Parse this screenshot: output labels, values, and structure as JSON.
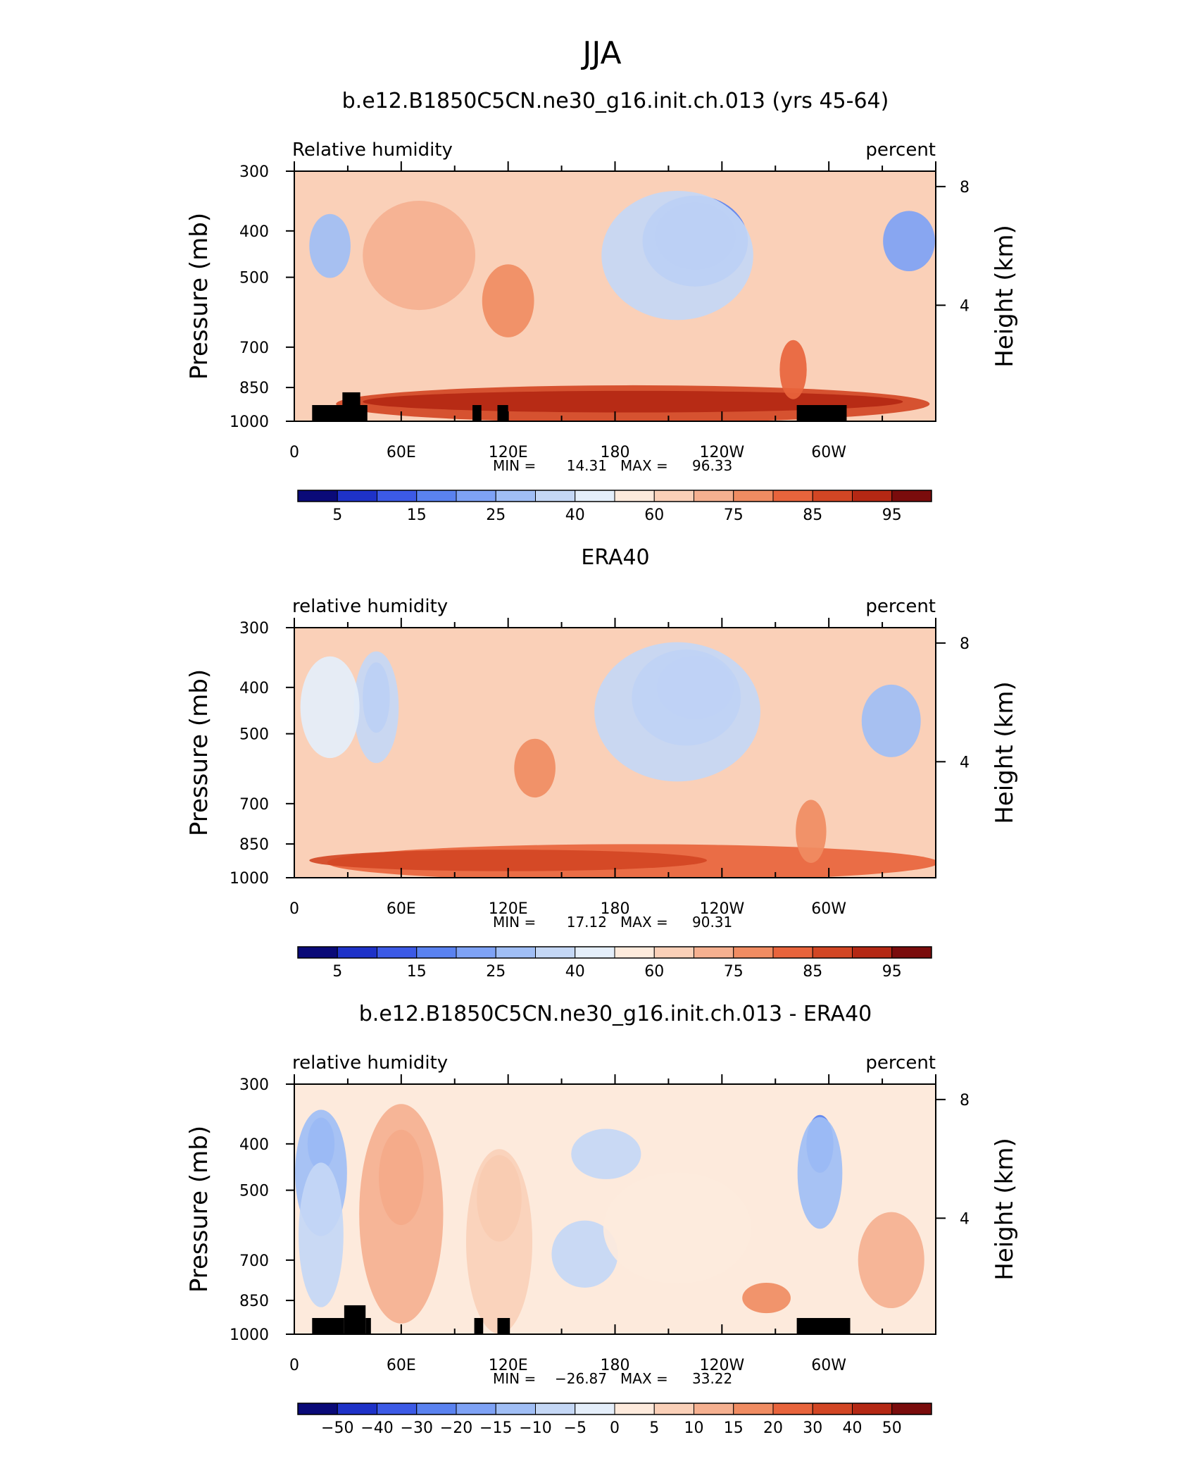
{
  "figure": {
    "main_title": "JJA"
  },
  "chart_data": [
    {
      "type": "heatmap",
      "title": "b.e12.B1850C5CN.ne30_g16.init.ch.013 (yrs 45-64)",
      "left_label": "Relative humidity",
      "right_label": "percent",
      "ylabel": "Pressure (mb)",
      "ylabel_right": "Height (km)",
      "x_ticks": [
        "0",
        "60E",
        "120E",
        "180",
        "120W",
        "60W"
      ],
      "x_tick_lon": [
        0,
        60,
        120,
        180,
        240,
        300
      ],
      "y_ticks": [
        300,
        400,
        500,
        700,
        850,
        1000
      ],
      "y_ticks_right": [
        8,
        4
      ],
      "xlim": [
        0,
        360
      ],
      "ylim": [
        1000,
        300
      ],
      "y_scale": "log",
      "min_label": "MIN =",
      "min_value": "14.31",
      "max_label": "MAX =",
      "max_value": "96.33",
      "colorbar_labels": [
        "5",
        "15",
        "25",
        "40",
        "60",
        "75",
        "85",
        "95"
      ],
      "colorbar_levels": [
        5,
        10,
        15,
        20,
        25,
        30,
        40,
        50,
        60,
        70,
        75,
        80,
        85,
        90,
        95
      ],
      "colormap": [
        "#0a0a78",
        "#1e32c8",
        "#3c5ae6",
        "#5a82f0",
        "#7ea2f5",
        "#a0bef5",
        "#c4d7f5",
        "#e4eefa",
        "#fdeadc",
        "#fad0b8",
        "#f5b090",
        "#f08c62",
        "#e8643c",
        "#d24624",
        "#b42814",
        "#7a0c0c"
      ],
      "orography": [
        {
          "lon_start": 10,
          "lon_end": 34,
          "top_p": 925
        },
        {
          "lon_start": 27,
          "lon_end": 37,
          "top_p": 870
        },
        {
          "lon_start": 34,
          "lon_end": 41,
          "top_p": 925
        },
        {
          "lon_start": 100,
          "lon_end": 105,
          "top_p": 925
        },
        {
          "lon_start": 114,
          "lon_end": 120,
          "top_p": 925
        },
        {
          "lon_start": 282,
          "lon_end": 310,
          "top_p": 925
        }
      ],
      "blobs": [
        {
          "lon": 225,
          "p": 410,
          "dlon": 42,
          "dp": 120,
          "level": 1
        },
        {
          "lon": 225,
          "p": 420,
          "dlon": 56,
          "dp": 170,
          "level": 3
        },
        {
          "lon": 215,
          "p": 450,
          "dlon": 82,
          "dp": 260,
          "level": 6
        },
        {
          "lon": 20,
          "p": 430,
          "dlon": 20,
          "dp": 120,
          "level": 5
        },
        {
          "lon": 345,
          "p": 420,
          "dlon": 26,
          "dp": 110,
          "level": 4
        },
        {
          "lon": 120,
          "p": 560,
          "dlon": 26,
          "dp": 180,
          "level": 11
        },
        {
          "lon": 70,
          "p": 450,
          "dlon": 60,
          "dp": 220,
          "level": 10
        },
        {
          "lon": 190,
          "p": 920,
          "dlon": 330,
          "dp": 140,
          "level": 13
        },
        {
          "lon": 190,
          "p": 910,
          "dlon": 300,
          "dp": 70,
          "level": 14
        },
        {
          "lon": 280,
          "p": 780,
          "dlon": 12,
          "dp": 200,
          "level": 12
        }
      ]
    },
    {
      "type": "heatmap",
      "title": "ERA40",
      "left_label": "relative humidity",
      "right_label": "percent",
      "ylabel": "Pressure (mb)",
      "ylabel_right": "Height (km)",
      "x_ticks": [
        "0",
        "60E",
        "120E",
        "180",
        "120W",
        "60W"
      ],
      "x_tick_lon": [
        0,
        60,
        120,
        180,
        240,
        300
      ],
      "y_ticks": [
        300,
        400,
        500,
        700,
        850,
        1000
      ],
      "y_ticks_right": [
        8,
        4
      ],
      "xlim": [
        0,
        360
      ],
      "ylim": [
        1000,
        300
      ],
      "y_scale": "log",
      "min_label": "MIN =",
      "min_value": "17.12",
      "max_label": "MAX =",
      "max_value": "90.31",
      "colorbar_labels": [
        "5",
        "15",
        "25",
        "40",
        "60",
        "75",
        "85",
        "95"
      ],
      "colorbar_levels": [
        5,
        10,
        15,
        20,
        25,
        30,
        40,
        50,
        60,
        70,
        75,
        80,
        85,
        90,
        95
      ],
      "colormap": [
        "#0a0a78",
        "#1e32c8",
        "#3c5ae6",
        "#5a82f0",
        "#7ea2f5",
        "#a0bef5",
        "#c4d7f5",
        "#e4eefa",
        "#fdeadc",
        "#fad0b8",
        "#f5b090",
        "#f08c62",
        "#e8643c",
        "#d24624",
        "#b42814",
        "#7a0c0c"
      ],
      "orography": [],
      "blobs": [
        {
          "lon": 225,
          "p": 400,
          "dlon": 40,
          "dp": 110,
          "level": 2
        },
        {
          "lon": 220,
          "p": 420,
          "dlon": 58,
          "dp": 180,
          "level": 4
        },
        {
          "lon": 215,
          "p": 450,
          "dlon": 90,
          "dp": 280,
          "level": 6
        },
        {
          "lon": 46,
          "p": 420,
          "dlon": 12,
          "dp": 130,
          "level": 3
        },
        {
          "lon": 46,
          "p": 440,
          "dlon": 22,
          "dp": 220,
          "level": 6
        },
        {
          "lon": 335,
          "p": 470,
          "dlon": 30,
          "dp": 150,
          "level": 5
        },
        {
          "lon": 20,
          "p": 440,
          "dlon": 30,
          "dp": 200,
          "level": 7
        },
        {
          "lon": 135,
          "p": 590,
          "dlon": 20,
          "dp": 150,
          "level": 11
        },
        {
          "lon": 190,
          "p": 930,
          "dlon": 340,
          "dp": 140,
          "level": 12
        },
        {
          "lon": 120,
          "p": 920,
          "dlon": 220,
          "dp": 70,
          "level": 13
        },
        {
          "lon": 290,
          "p": 800,
          "dlon": 14,
          "dp": 220,
          "level": 11
        }
      ]
    },
    {
      "type": "heatmap",
      "title": "b.e12.B1850C5CN.ne30_g16.init.ch.013 - ERA40",
      "left_label": "relative humidity",
      "right_label": "percent",
      "ylabel": "Pressure (mb)",
      "ylabel_right": "Height (km)",
      "x_ticks": [
        "0",
        "60E",
        "120E",
        "180",
        "120W",
        "60W"
      ],
      "x_tick_lon": [
        0,
        60,
        120,
        180,
        240,
        300
      ],
      "y_ticks": [
        300,
        400,
        500,
        700,
        850,
        1000
      ],
      "y_ticks_right": [
        8,
        4
      ],
      "xlim": [
        0,
        360
      ],
      "ylim": [
        1000,
        300
      ],
      "y_scale": "log",
      "min_label": "MIN =",
      "min_value": "−26.87",
      "max_label": "MAX =",
      "max_value": "33.22",
      "colorbar_labels": [
        "−50",
        "−40",
        "−30",
        "−20",
        "−15",
        "−10",
        "−5",
        "0",
        "5",
        "10",
        "15",
        "20",
        "30",
        "40",
        "50"
      ],
      "colorbar_levels": [
        -50,
        -40,
        -30,
        -20,
        -15,
        -10,
        -5,
        0,
        5,
        10,
        15,
        20,
        30,
        40,
        50
      ],
      "colormap": [
        "#0a0a78",
        "#1e32c8",
        "#3c5ae6",
        "#5a82f0",
        "#7ea2f5",
        "#a0bef5",
        "#c4d7f5",
        "#e4eefa",
        "#fdeadc",
        "#fad0b8",
        "#f5b090",
        "#f08c62",
        "#e8643c",
        "#d24624",
        "#b42814",
        "#7a0c0c"
      ],
      "orography": [
        {
          "lon_start": 10,
          "lon_end": 28,
          "top_p": 925
        },
        {
          "lon_start": 28,
          "lon_end": 40,
          "top_p": 870
        },
        {
          "lon_start": 40,
          "lon_end": 43,
          "top_p": 925
        },
        {
          "lon_start": 101,
          "lon_end": 106,
          "top_p": 925
        },
        {
          "lon_start": 114,
          "lon_end": 121,
          "top_p": 925
        },
        {
          "lon_start": 282,
          "lon_end": 312,
          "top_p": 925
        }
      ],
      "blobs": [
        {
          "lon": 15,
          "p": 400,
          "dlon": 12,
          "dp": 90,
          "level": 3
        },
        {
          "lon": 15,
          "p": 460,
          "dlon": 26,
          "dp": 260,
          "level": 5
        },
        {
          "lon": 15,
          "p": 620,
          "dlon": 22,
          "dp": 400,
          "level": 6
        },
        {
          "lon": 295,
          "p": 400,
          "dlon": 12,
          "dp": 100,
          "level": 3
        },
        {
          "lon": 295,
          "p": 460,
          "dlon": 22,
          "dp": 230,
          "level": 5
        },
        {
          "lon": 163,
          "p": 680,
          "dlon": 34,
          "dp": 200,
          "level": 6
        },
        {
          "lon": 175,
          "p": 420,
          "dlon": 36,
          "dp": 90,
          "level": 6
        },
        {
          "lon": 60,
          "p": 470,
          "dlon": 22,
          "dp": 200,
          "level": 12
        },
        {
          "lon": 60,
          "p": 560,
          "dlon": 44,
          "dp": 560,
          "level": 10
        },
        {
          "lon": 115,
          "p": 520,
          "dlon": 22,
          "dp": 200,
          "level": 11
        },
        {
          "lon": 115,
          "p": 640,
          "dlon": 34,
          "dp": 520,
          "level": 9
        },
        {
          "lon": 335,
          "p": 700,
          "dlon": 34,
          "dp": 300,
          "level": 10
        },
        {
          "lon": 265,
          "p": 840,
          "dlon": 24,
          "dp": 100,
          "level": 11
        },
        {
          "lon": 215,
          "p": 600,
          "dlon": 80,
          "dp": 300,
          "level": 8
        }
      ]
    }
  ]
}
